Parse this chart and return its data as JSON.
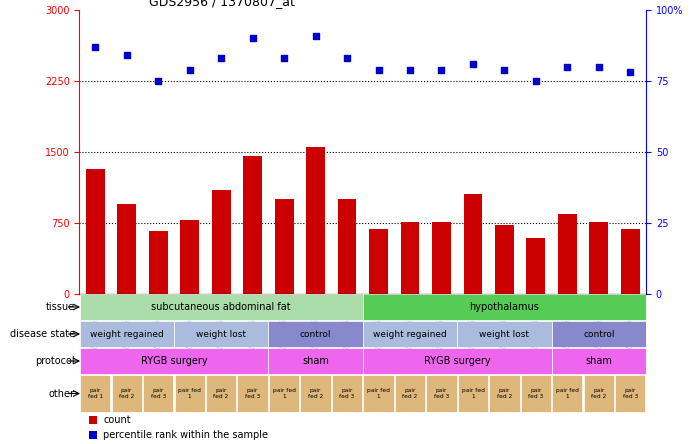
{
  "title": "GDS2956 / 1370807_at",
  "samples": [
    "GSM206031",
    "GSM206036",
    "GSM206040",
    "GSM206043",
    "GSM206044",
    "GSM206045",
    "GSM206022",
    "GSM206024",
    "GSM206027",
    "GSM206034",
    "GSM206038",
    "GSM206041",
    "GSM206046",
    "GSM206049",
    "GSM206050",
    "GSM206023",
    "GSM206025",
    "GSM206028"
  ],
  "bar_values": [
    1320,
    950,
    660,
    780,
    1100,
    1450,
    1000,
    1550,
    1000,
    680,
    760,
    760,
    1050,
    730,
    590,
    840,
    760,
    680
  ],
  "dot_values": [
    87,
    84,
    75,
    79,
    83,
    90,
    83,
    91,
    83,
    79,
    79,
    79,
    81,
    79,
    75,
    80,
    80,
    78
  ],
  "bar_color": "#cc0000",
  "dot_color": "#0000cc",
  "ylim_left": [
    0,
    3000
  ],
  "ylim_right": [
    0,
    100
  ],
  "yticks_left": [
    0,
    750,
    1500,
    2250,
    3000
  ],
  "yticks_right": [
    0,
    25,
    50,
    75,
    100
  ],
  "hlines": [
    750,
    1500,
    2250
  ],
  "tissue_row": [
    {
      "label": "subcutaneous abdominal fat",
      "start": 0,
      "end": 9,
      "color": "#aaddaa"
    },
    {
      "label": "hypothalamus",
      "start": 9,
      "end": 18,
      "color": "#55cc55"
    }
  ],
  "disease_row": [
    {
      "label": "weight regained",
      "start": 0,
      "end": 3,
      "color": "#aabbdd"
    },
    {
      "label": "weight lost",
      "start": 3,
      "end": 6,
      "color": "#aabbdd"
    },
    {
      "label": "control",
      "start": 6,
      "end": 9,
      "color": "#8888cc"
    },
    {
      "label": "weight regained",
      "start": 9,
      "end": 12,
      "color": "#aabbdd"
    },
    {
      "label": "weight lost",
      "start": 12,
      "end": 15,
      "color": "#aabbdd"
    },
    {
      "label": "control",
      "start": 15,
      "end": 18,
      "color": "#8888cc"
    }
  ],
  "protocol_row": [
    {
      "label": "RYGB surgery",
      "start": 0,
      "end": 6,
      "color": "#ee66ee"
    },
    {
      "label": "sham",
      "start": 6,
      "end": 9,
      "color": "#ee66ee"
    },
    {
      "label": "RYGB surgery",
      "start": 9,
      "end": 15,
      "color": "#ee66ee"
    },
    {
      "label": "sham",
      "start": 15,
      "end": 18,
      "color": "#ee66ee"
    }
  ],
  "other_labels": [
    "pair\nfed 1",
    "pair\nfed 2",
    "pair\nfed 3",
    "pair fed\n1",
    "pair\nfed 2",
    "pair\nfed 3",
    "pair fed\n1",
    "pair\nfed 2",
    "pair\nfed 3",
    "pair fed\n1",
    "pair\nfed 2",
    "pair\nfed 3",
    "pair fed\n1",
    "pair\nfed 2",
    "pair\nfed 3",
    "pair fed\n1",
    "pair\nfed 2",
    "pair\nfed 3"
  ],
  "other_colors": [
    "#ddb87a",
    "#ddb87a",
    "#ddb87a",
    "#ddb87a",
    "#ddb87a",
    "#ddb87a",
    "#ddb87a",
    "#ddb87a",
    "#ddb87a",
    "#ddb87a",
    "#ddb87a",
    "#ddb87a",
    "#ddb87a",
    "#ddb87a",
    "#ddb87a",
    "#ddb87a",
    "#ddb87a",
    "#ddb87a"
  ],
  "row_labels": [
    "tissue",
    "disease state",
    "protocol",
    "other"
  ],
  "legend_items": [
    {
      "color": "#cc0000",
      "label": "count"
    },
    {
      "color": "#0000cc",
      "label": "percentile rank within the sample"
    }
  ]
}
